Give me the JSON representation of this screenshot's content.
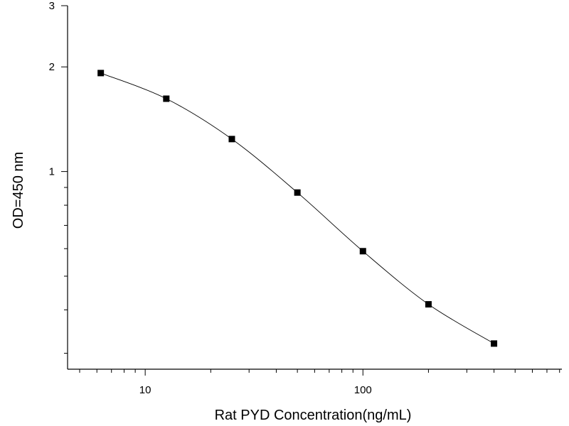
{
  "chart_data": {
    "type": "line",
    "xlabel": "Rat PYD  Concentration(ng/mL)",
    "ylabel": "OD=450 nm",
    "xscale": "log",
    "yscale": "log",
    "xlim": [
      4.4,
      820
    ],
    "ylim": [
      0.27,
      3
    ],
    "x_tick_labels": [
      "10",
      "100"
    ],
    "y_tick_labels": [
      "1",
      "2",
      "3"
    ],
    "grid": false,
    "series": [
      {
        "x": [
          6.25,
          12.5,
          25,
          50,
          100,
          200,
          400
        ],
        "y": [
          1.92,
          1.62,
          1.24,
          0.87,
          0.59,
          0.415,
          0.32
        ],
        "marker": "square",
        "color": "#000000"
      }
    ]
  }
}
